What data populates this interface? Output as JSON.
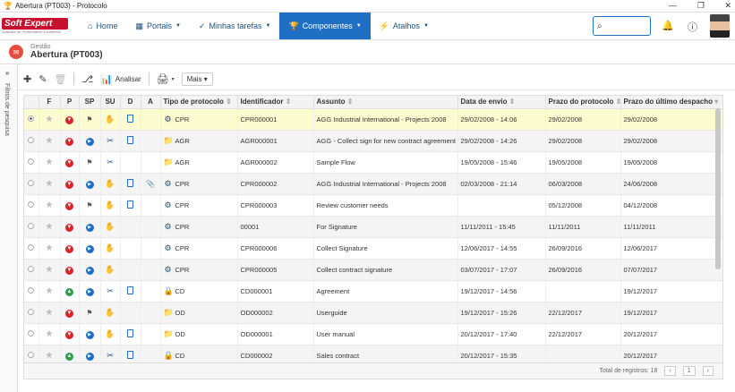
{
  "window": {
    "title": "Abertura (PT003) - Protocolo"
  },
  "nav": {
    "logo": "Soft Expert",
    "logo_tag": "Software for Performance Excellence",
    "items": [
      {
        "label": "Home",
        "icon": "home-icon",
        "caret": false
      },
      {
        "label": "Portais",
        "icon": "portal-icon",
        "caret": true
      },
      {
        "label": "Minhas tarefas",
        "icon": "check-icon",
        "caret": true
      },
      {
        "label": "Componentes",
        "icon": "trophy-icon",
        "caret": true,
        "active": true
      },
      {
        "label": "Atalhos",
        "icon": "bolt-icon",
        "caret": true
      }
    ]
  },
  "header": {
    "crumb": "Gestão",
    "title": "Abertura (PT003)"
  },
  "sidebar": {
    "label": "Filtros de pesquisa"
  },
  "toolbar": {
    "analisar": "Analisar",
    "mais": "Mais"
  },
  "columns": [
    "F",
    "P",
    "SP",
    "SU",
    "D",
    "A",
    "Tipo de protocolo",
    "Identificador",
    "Assunto",
    "Data de envio",
    "Prazo do protocolo",
    "Prazo do último despacho"
  ],
  "rows": [
    {
      "sel": true,
      "p": "down",
      "sp": "flag",
      "su": "g",
      "d": true,
      "a": false,
      "ticon": "gear",
      "type": "CPR",
      "id": "CPR000001",
      "subj": "AGG Industrial International - Projects 2008",
      "sent": "29/02/2008 - 14:06",
      "prazo": "29/02/2008",
      "ult": "29/02/2008"
    },
    {
      "p": "down",
      "sp": "play",
      "su": "t",
      "d": true,
      "a": false,
      "ticon": "folder",
      "type": "AGR",
      "id": "AGR000001",
      "subj": "AGG - Collect sign for new contract agreement",
      "sent": "29/02/2008 - 14:26",
      "prazo": "29/02/2008",
      "ult": "29/02/2008"
    },
    {
      "p": "down",
      "sp": "flag",
      "su": "t",
      "d": false,
      "a": false,
      "ticon": "folder",
      "type": "AGR",
      "id": "AGR000002",
      "subj": "Sample Flow",
      "sent": "19/05/2008 - 15:46",
      "prazo": "19/05/2008",
      "ult": "19/05/2008"
    },
    {
      "p": "down",
      "sp": "play",
      "su": "g",
      "d": true,
      "a": true,
      "ticon": "gear",
      "type": "CPR",
      "id": "CPR000002",
      "subj": "AGG Industrial International - Projects 2008",
      "sent": "02/03/2008 - 21:14",
      "prazo": "06/03/2008",
      "ult": "24/06/2008"
    },
    {
      "p": "down",
      "sp": "flag",
      "su": "g",
      "d": true,
      "a": false,
      "ticon": "gear",
      "type": "CPR",
      "id": "CPR000003",
      "subj": "Review customer needs",
      "sent": "",
      "prazo": "05/12/2008",
      "ult": "04/12/2008"
    },
    {
      "p": "down",
      "sp": "play",
      "su": "g",
      "d": false,
      "a": false,
      "ticon": "gear",
      "type": "CPR",
      "id": "00001",
      "subj": "For Signature",
      "sent": "11/11/2011 - 15:45",
      "prazo": "11/11/2011",
      "ult": "11/11/2011"
    },
    {
      "p": "down",
      "sp": "play",
      "su": "g",
      "d": false,
      "a": false,
      "ticon": "gear",
      "type": "CPR",
      "id": "CPR000006",
      "subj": "Collect Signature",
      "sent": "12/06/2017 - 14:55",
      "prazo": "26/09/2016",
      "ult": "12/06/2017"
    },
    {
      "p": "down",
      "sp": "play",
      "su": "g",
      "d": false,
      "a": false,
      "ticon": "gear",
      "type": "CPR",
      "id": "CPR000005",
      "subj": "Collect contract signature",
      "sent": "03/07/2017 - 17:07",
      "prazo": "26/09/2016",
      "ult": "07/07/2017"
    },
    {
      "p": "up",
      "sp": "play",
      "su": "t",
      "d": true,
      "a": false,
      "ticon": "lock",
      "type": "CD",
      "id": "CD000001",
      "subj": "Agreement",
      "sent": "19/12/2017 - 14:56",
      "prazo": "",
      "ult": "19/12/2017"
    },
    {
      "p": "down",
      "sp": "flag",
      "su": "g",
      "d": false,
      "a": false,
      "ticon": "folder",
      "type": "OD",
      "id": "OD000002",
      "subj": "Userguide",
      "sent": "19/12/2017 - 15:26",
      "prazo": "22/12/2017",
      "ult": "19/12/2017"
    },
    {
      "p": "down",
      "sp": "play",
      "su": "g",
      "d": true,
      "a": false,
      "ticon": "folder",
      "type": "OD",
      "id": "OD000001",
      "subj": "User manual",
      "sent": "20/12/2017 - 17:40",
      "prazo": "22/12/2017",
      "ult": "20/12/2017"
    },
    {
      "p": "up",
      "sp": "play",
      "su": "t",
      "d": true,
      "a": false,
      "ticon": "lock",
      "type": "CD",
      "id": "CD000002",
      "subj": "Sales contract",
      "sent": "20/12/2017 - 15:35",
      "prazo": "",
      "ult": "20/12/2017"
    }
  ],
  "footer": {
    "total": "Total de registros: 18",
    "page": "1"
  },
  "colors": {
    "accent": "#1f6fc5",
    "brand": "#c8102e",
    "selected": "#fdfbd0"
  }
}
